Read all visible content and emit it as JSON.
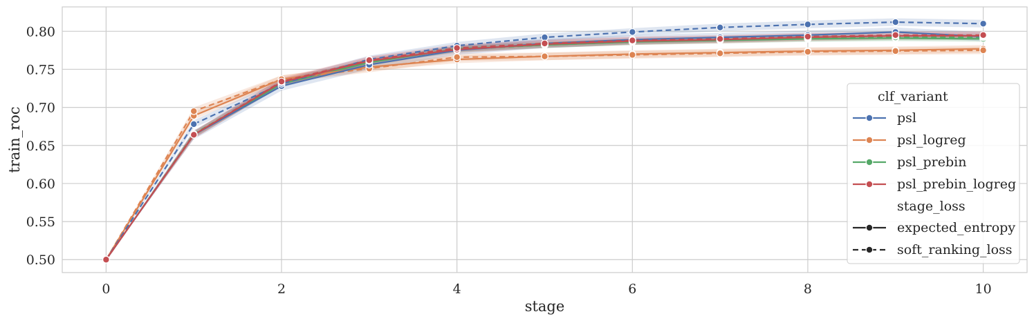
{
  "chart_data": {
    "type": "line",
    "xlabel": "stage",
    "ylabel": "train_roc",
    "xlim": [
      -0.5,
      10.5
    ],
    "ylim": [
      0.483,
      0.832
    ],
    "xticks": [
      0,
      2,
      4,
      6,
      8,
      10
    ],
    "yticks": [
      0.5,
      0.55,
      0.6,
      0.65,
      0.7,
      0.75,
      0.8
    ],
    "grid": true,
    "legend_placement": "right",
    "x": [
      0,
      1,
      2,
      3,
      4,
      5,
      6,
      7,
      8,
      9,
      10
    ],
    "legend": {
      "hue_title": "clf_variant",
      "style_title": "stage_loss",
      "hue_entries": [
        {
          "name": "psl",
          "color": "#4c72b0"
        },
        {
          "name": "psl_logreg",
          "color": "#dd8452"
        },
        {
          "name": "psl_prebin",
          "color": "#55a868"
        },
        {
          "name": "psl_prebin_logreg",
          "color": "#c44e52"
        }
      ],
      "style_entries": [
        {
          "name": "expected_entropy",
          "dash": "solid"
        },
        {
          "name": "soft_ranking_loss",
          "dash": "dashed"
        }
      ]
    },
    "series": [
      {
        "name": "psl",
        "stage_loss": "expected_entropy",
        "color": "#4c72b0",
        "dash": "solid",
        "values": [
          0.5,
          0.664,
          0.728,
          0.756,
          0.775,
          0.784,
          0.789,
          0.792,
          0.795,
          0.799,
          0.793
        ],
        "ci": 0.006
      },
      {
        "name": "psl",
        "stage_loss": "soft_ranking_loss",
        "color": "#4c72b0",
        "dash": "dashed",
        "values": [
          0.5,
          0.678,
          0.731,
          0.763,
          0.781,
          0.792,
          0.799,
          0.805,
          0.809,
          0.812,
          0.81
        ],
        "ci": 0.005
      },
      {
        "name": "psl_logreg",
        "stage_loss": "expected_entropy",
        "color": "#dd8452",
        "dash": "solid",
        "values": [
          0.5,
          0.689,
          0.737,
          0.753,
          0.763,
          0.767,
          0.77,
          0.772,
          0.774,
          0.775,
          0.777
        ],
        "ci": 0.005
      },
      {
        "name": "psl_logreg",
        "stage_loss": "soft_ranking_loss",
        "color": "#dd8452",
        "dash": "dashed",
        "values": [
          0.5,
          0.695,
          0.737,
          0.751,
          0.766,
          0.767,
          0.769,
          0.771,
          0.773,
          0.774,
          0.775
        ],
        "ci": 0.005
      },
      {
        "name": "psl_prebin",
        "stage_loss": "expected_entropy",
        "color": "#55a868",
        "dash": "solid",
        "values": [
          0.5,
          0.664,
          0.731,
          0.759,
          0.777,
          0.782,
          0.786,
          0.788,
          0.79,
          0.791,
          0.79
        ],
        "ci": 0.004
      },
      {
        "name": "psl_prebin",
        "stage_loss": "soft_ranking_loss",
        "color": "#55a868",
        "dash": "dashed",
        "values": [
          0.5,
          0.665,
          0.732,
          0.76,
          0.776,
          0.782,
          0.786,
          0.789,
          0.791,
          0.792,
          0.792
        ],
        "ci": 0.004
      },
      {
        "name": "psl_prebin_logreg",
        "stage_loss": "expected_entropy",
        "color": "#c44e52",
        "dash": "solid",
        "values": [
          0.5,
          0.664,
          0.733,
          0.761,
          0.776,
          0.783,
          0.787,
          0.789,
          0.792,
          0.794,
          0.794
        ],
        "ci": 0.005
      },
      {
        "name": "psl_prebin_logreg",
        "stage_loss": "soft_ranking_loss",
        "color": "#c44e52",
        "dash": "dashed",
        "values": [
          0.5,
          0.664,
          0.734,
          0.762,
          0.778,
          0.784,
          0.788,
          0.79,
          0.793,
          0.795,
          0.795
        ],
        "ci": 0.005
      }
    ]
  }
}
